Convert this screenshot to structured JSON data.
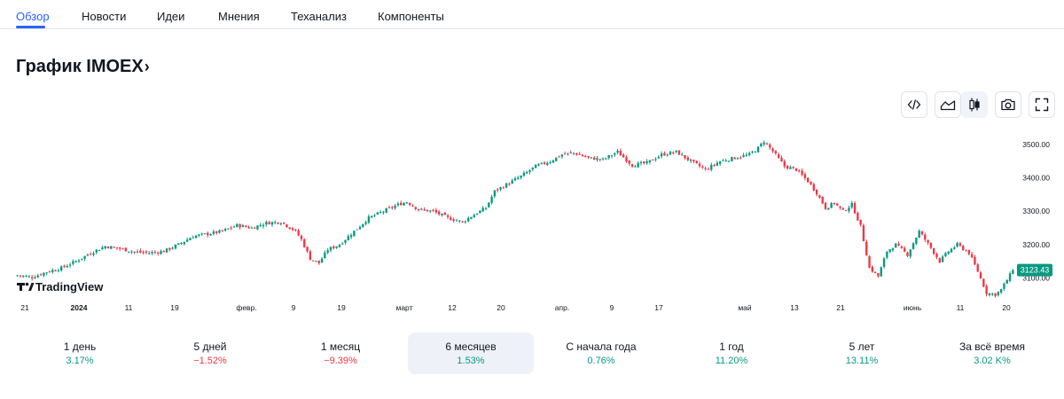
{
  "tabs": [
    {
      "label": "Обзор",
      "active": true
    },
    {
      "label": "Новости"
    },
    {
      "label": "Идеи"
    },
    {
      "label": "Мнения"
    },
    {
      "label": "Теханализ"
    },
    {
      "label": "Компоненты"
    }
  ],
  "chart_header": {
    "title": "График IMOEX",
    "chevron": "›"
  },
  "toolbar": [
    {
      "icon": "embed-code-icon"
    },
    {
      "icon": "area-chart-icon"
    },
    {
      "icon": "candlestick-chart-icon",
      "active": true
    },
    {
      "icon": "camera-icon"
    },
    {
      "icon": "fullscreen-icon"
    }
  ],
  "colors": {
    "up": "#089981",
    "down": "#f23645",
    "accent": "#2962ff",
    "last_price_bg": "#089981"
  },
  "watermark": {
    "text": "TradingView",
    "icon": "tradingview-logo-icon"
  },
  "chart_data": {
    "type": "candlestick",
    "instrument": "IMOEX",
    "y_ticks": [
      3100,
      3200,
      3300,
      3400,
      3500
    ],
    "y_tick_labels": [
      "3100.00",
      "3200.00",
      "3300.00",
      "3400.00",
      "3500.00"
    ],
    "ylim": [
      3040,
      3540
    ],
    "last_price": "3123.43",
    "last_value": 3123.43,
    "x_ticks": [
      {
        "label": "21",
        "bold": false
      },
      {
        "label": "2024",
        "bold": true
      },
      {
        "label": "11",
        "bold": false
      },
      {
        "label": "19",
        "bold": false
      },
      {
        "label": "февр.",
        "bold": false
      },
      {
        "label": "9",
        "bold": false
      },
      {
        "label": "19",
        "bold": false
      },
      {
        "label": "март",
        "bold": false
      },
      {
        "label": "12",
        "bold": false
      },
      {
        "label": "20",
        "bold": false
      },
      {
        "label": "апр.",
        "bold": false
      },
      {
        "label": "9",
        "bold": false
      },
      {
        "label": "17",
        "bold": false
      },
      {
        "label": "май",
        "bold": false
      },
      {
        "label": "13",
        "bold": false
      },
      {
        "label": "21",
        "bold": false
      },
      {
        "label": "июнь",
        "bold": false
      },
      {
        "label": "11",
        "bold": false
      },
      {
        "label": "20",
        "bold": false
      }
    ],
    "close_path": [
      [
        0,
        3108
      ],
      [
        5,
        3102
      ],
      [
        10,
        3118
      ],
      [
        15,
        3130
      ],
      [
        20,
        3150
      ],
      [
        25,
        3175
      ],
      [
        30,
        3195
      ],
      [
        35,
        3188
      ],
      [
        40,
        3178
      ],
      [
        45,
        3175
      ],
      [
        50,
        3180
      ],
      [
        55,
        3200
      ],
      [
        60,
        3225
      ],
      [
        65,
        3232
      ],
      [
        70,
        3240
      ],
      [
        75,
        3258
      ],
      [
        80,
        3250
      ],
      [
        85,
        3265
      ],
      [
        90,
        3268
      ],
      [
        95,
        3240
      ],
      [
        97,
        3215
      ],
      [
        100,
        3158
      ],
      [
        103,
        3145
      ],
      [
        106,
        3185
      ],
      [
        110,
        3200
      ],
      [
        115,
        3240
      ],
      [
        120,
        3280
      ],
      [
        125,
        3300
      ],
      [
        130,
        3320
      ],
      [
        133,
        3328
      ],
      [
        137,
        3305
      ],
      [
        142,
        3300
      ],
      [
        147,
        3280
      ],
      [
        152,
        3268
      ],
      [
        156,
        3290
      ],
      [
        160,
        3310
      ],
      [
        163,
        3360
      ],
      [
        167,
        3380
      ],
      [
        172,
        3405
      ],
      [
        177,
        3435
      ],
      [
        182,
        3450
      ],
      [
        186,
        3470
      ],
      [
        190,
        3475
      ],
      [
        195,
        3460
      ],
      [
        200,
        3455
      ],
      [
        205,
        3478
      ],
      [
        210,
        3438
      ],
      [
        215,
        3445
      ],
      [
        220,
        3470
      ],
      [
        225,
        3478
      ],
      [
        230,
        3450
      ],
      [
        235,
        3425
      ],
      [
        240,
        3450
      ],
      [
        245,
        3460
      ],
      [
        250,
        3470
      ],
      [
        253,
        3490
      ],
      [
        255,
        3510
      ],
      [
        258,
        3480
      ],
      [
        262,
        3435
      ],
      [
        266,
        3425
      ],
      [
        270,
        3390
      ],
      [
        273,
        3355
      ],
      [
        276,
        3310
      ],
      [
        279,
        3325
      ],
      [
        282,
        3300
      ],
      [
        285,
        3320
      ],
      [
        288,
        3255
      ],
      [
        291,
        3130
      ],
      [
        294,
        3105
      ],
      [
        297,
        3180
      ],
      [
        300,
        3200
      ],
      [
        304,
        3170
      ],
      [
        308,
        3240
      ],
      [
        312,
        3190
      ],
      [
        315,
        3150
      ],
      [
        318,
        3180
      ],
      [
        321,
        3200
      ],
      [
        325,
        3175
      ],
      [
        328,
        3120
      ],
      [
        331,
        3055
      ],
      [
        334,
        3050
      ],
      [
        336,
        3065
      ],
      [
        340,
        3123.43
      ]
    ]
  },
  "periods": [
    {
      "label": "1 день",
      "value": "3.17%",
      "sign": "pos"
    },
    {
      "label": "5 дней",
      "value": "−1.52%",
      "sign": "neg"
    },
    {
      "label": "1 месяц",
      "value": "−9.39%",
      "sign": "neg"
    },
    {
      "label": "6 месяцев",
      "value": "1.53%",
      "sign": "pos",
      "active": true
    },
    {
      "label": "С начала года",
      "value": "0.76%",
      "sign": "pos"
    },
    {
      "label": "1 год",
      "value": "11.20%",
      "sign": "pos"
    },
    {
      "label": "5 лет",
      "value": "13.11%",
      "sign": "pos"
    },
    {
      "label": "За всё время",
      "value": "3.02 K%",
      "sign": "pos"
    }
  ]
}
